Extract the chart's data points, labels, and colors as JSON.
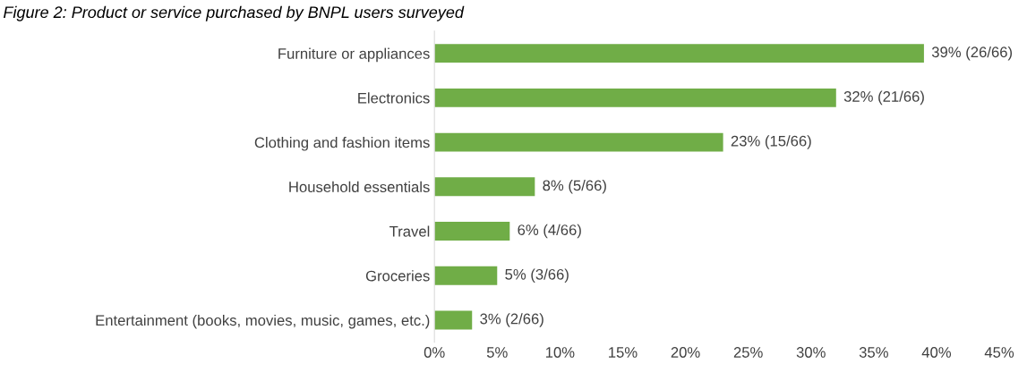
{
  "chart_data": {
    "type": "bar",
    "orientation": "horizontal",
    "title": "Figure 2: Product or service purchased by BNPL users surveyed",
    "categories": [
      "Furniture or appliances",
      "Electronics",
      "Clothing and fashion items",
      "Household essentials",
      "Travel",
      "Groceries",
      "Entertainment (books, movies, music, games, etc.)"
    ],
    "values": [
      39,
      32,
      23,
      8,
      6,
      5,
      3
    ],
    "value_labels": [
      "39% (26/66)",
      "32% (21/66)",
      "23% (15/66)",
      "8% (5/66)",
      "6% (4/66)",
      "5% (3/66)",
      "3% (2/66)"
    ],
    "color": "#70ad47",
    "xlim": [
      0,
      45
    ],
    "xticks": [
      {
        "value": 0,
        "label": "0%"
      },
      {
        "value": 5,
        "label": "5%"
      },
      {
        "value": 10,
        "label": "10%"
      },
      {
        "value": 15,
        "label": "15%"
      },
      {
        "value": 20,
        "label": "20%"
      },
      {
        "value": 25,
        "label": "25%"
      },
      {
        "value": 30,
        "label": "30%"
      },
      {
        "value": 35,
        "label": "35%"
      },
      {
        "value": 40,
        "label": "40%"
      },
      {
        "value": 45,
        "label": "45%"
      }
    ],
    "grid": false,
    "legend": false
  }
}
